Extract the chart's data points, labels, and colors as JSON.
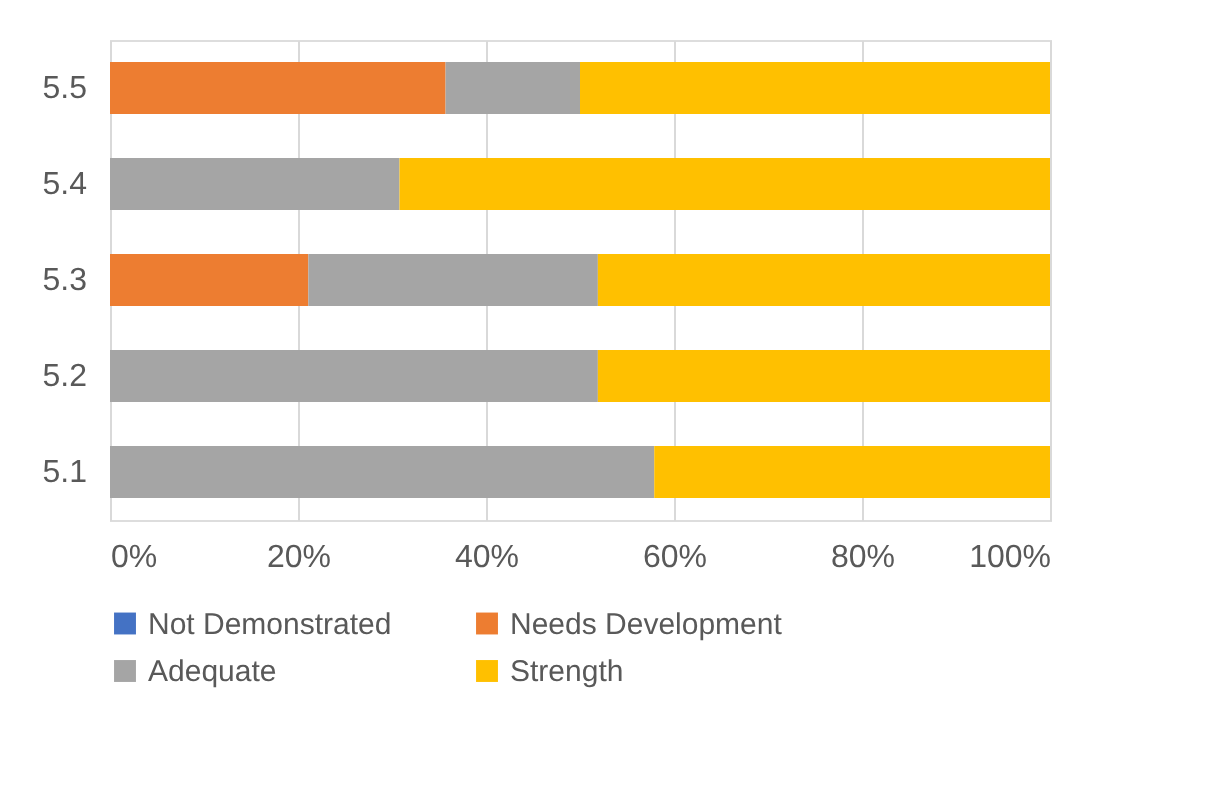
{
  "chart_data": {
    "type": "bar",
    "orientation": "horizontal",
    "stacked": true,
    "categories": [
      "5.5",
      "5.4",
      "5.3",
      "5.2",
      "5.1"
    ],
    "series": [
      {
        "name": "Not Demonstrated",
        "color": "#4472c4",
        "values": [
          0,
          0,
          0,
          0,
          0
        ]
      },
      {
        "name": "Needs Development",
        "color": "#ed7d31",
        "values": [
          35.7,
          0,
          21.1,
          0,
          0
        ]
      },
      {
        "name": "Adequate",
        "color": "#a5a5a5",
        "values": [
          14.3,
          30.8,
          30.8,
          51.9,
          57.9
        ]
      },
      {
        "name": "Strength",
        "color": "#ffc000",
        "values": [
          50,
          69.2,
          48.1,
          48.1,
          42.1
        ]
      }
    ],
    "xlim": [
      0,
      100
    ],
    "xticks": [
      {
        "value": 0,
        "label": "0%"
      },
      {
        "value": 20,
        "label": "20%"
      },
      {
        "value": 40,
        "label": "40%"
      },
      {
        "value": 60,
        "label": "60%"
      },
      {
        "value": 80,
        "label": "80%"
      },
      {
        "value": 100,
        "label": "100%"
      }
    ],
    "grid": "x",
    "legend": "bottom"
  }
}
